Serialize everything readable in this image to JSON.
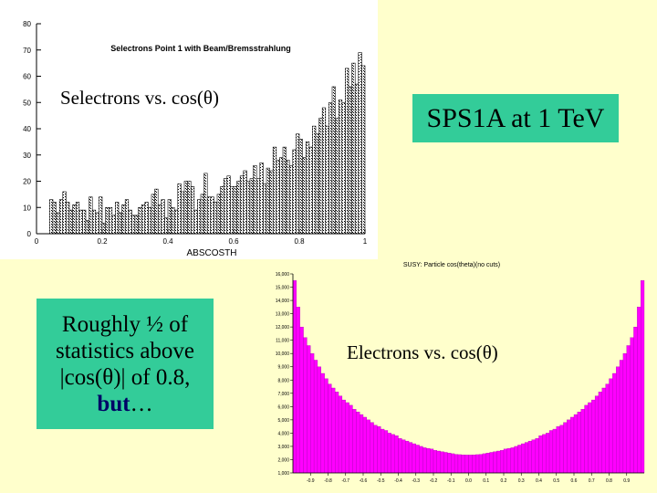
{
  "slide": {
    "sps_label": "SPS1A at 1 TeV",
    "stats_text": {
      "line1": "Roughly ½ of",
      "line2": "statistics above",
      "line3": "|cos(θ)| of 0.8,",
      "but": "but",
      "ellipsis": "…"
    },
    "selectrons_caption": "Selectrons vs. cos(θ)",
    "electrons_caption": "Electrons vs. cos(θ)",
    "colors": {
      "background": "#ffffcc",
      "box": "#33cc99",
      "magenta": "#ff00ff"
    }
  },
  "chart_data": [
    {
      "type": "bar",
      "title": "Selectrons Point 1 with Beam/Bremsstrahlung",
      "xlabel": "ABSCOSTH",
      "ylabel": "",
      "xlim": [
        0,
        1
      ],
      "ylim": [
        0,
        80
      ],
      "xticks": [
        "0",
        "0.2",
        "0.4",
        "0.6",
        "0.8",
        "1"
      ],
      "yticks": [
        "0",
        "10",
        "20",
        "30",
        "40",
        "50",
        "60",
        "70",
        "80"
      ],
      "bin_width": 0.01,
      "values": [
        0,
        0,
        0,
        0,
        13,
        12,
        8,
        13,
        16,
        12,
        9,
        11,
        12,
        9,
        9,
        5,
        14,
        9,
        8,
        14,
        4,
        10,
        10,
        7,
        12,
        8,
        11,
        13,
        9,
        7,
        7,
        10,
        11,
        12,
        10,
        15,
        17,
        11,
        13,
        6,
        13,
        10,
        9,
        19,
        16,
        20,
        20,
        18,
        9,
        13,
        15,
        23,
        14,
        14,
        12,
        15,
        18,
        21,
        22,
        18,
        18,
        20,
        22,
        24,
        20,
        21,
        26,
        21,
        27,
        19,
        25,
        24,
        33,
        28,
        29,
        33,
        28,
        26,
        32,
        38,
        36,
        29,
        35,
        33,
        41,
        38,
        44,
        48,
        41,
        50,
        56,
        44,
        51,
        50,
        63,
        56,
        65,
        57,
        69,
        64
      ]
    },
    {
      "type": "bar",
      "title": "SUSY: Particle cos(theta)(no cuts)",
      "xlabel": "",
      "ylabel": "",
      "xlim": [
        -1,
        1
      ],
      "ylim": [
        1000,
        16000
      ],
      "xticks": [
        "-0.9",
        "-0.8",
        "-0.7",
        "-0.6",
        "-0.5",
        "-0.4",
        "-0.3",
        "-0.2",
        "-0.1",
        "0.0",
        "0.1",
        "0.2",
        "0.3",
        "0.4",
        "0.5",
        "0.6",
        "0.7",
        "0.8",
        "0.9"
      ],
      "yticks": [
        "1,000",
        "2,000",
        "3,000",
        "4,000",
        "5,000",
        "6,000",
        "7,000",
        "8,000",
        "9,000",
        "10,000",
        "11,000",
        "12,000",
        "13,000",
        "14,000",
        "15,000",
        "16,000"
      ],
      "bin_width": 0.02,
      "values": [
        15500,
        13500,
        12000,
        11200,
        10600,
        10000,
        9500,
        9000,
        8500,
        8100,
        7700,
        7400,
        7100,
        6800,
        6500,
        6300,
        6100,
        5800,
        5600,
        5400,
        5200,
        5000,
        4800,
        4600,
        4500,
        4300,
        4200,
        4000,
        3900,
        3800,
        3600,
        3500,
        3400,
        3300,
        3200,
        3100,
        3000,
        2900,
        2850,
        2800,
        2700,
        2650,
        2600,
        2550,
        2500,
        2450,
        2400,
        2380,
        2360,
        2350,
        2350,
        2360,
        2380,
        2400,
        2450,
        2500,
        2550,
        2600,
        2650,
        2700,
        2800,
        2850,
        2900,
        3000,
        3100,
        3200,
        3300,
        3400,
        3500,
        3600,
        3800,
        3900,
        4000,
        4200,
        4300,
        4500,
        4600,
        4800,
        5000,
        5200,
        5400,
        5600,
        5800,
        6100,
        6300,
        6500,
        6800,
        7100,
        7400,
        7700,
        8100,
        8500,
        9000,
        9500,
        10000,
        10600,
        11200,
        12000,
        13500,
        15500
      ]
    }
  ]
}
